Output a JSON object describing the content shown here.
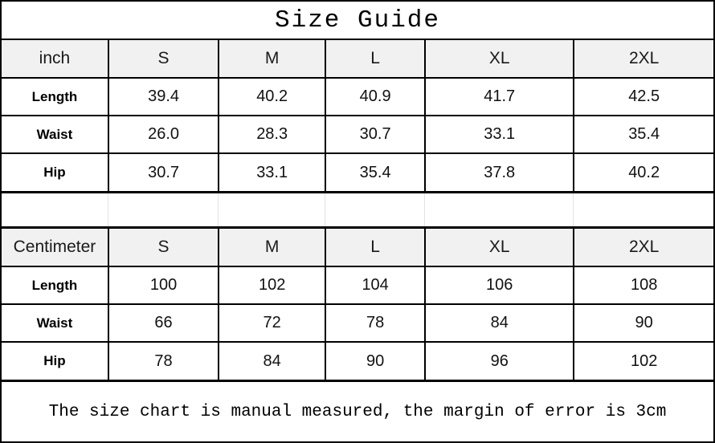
{
  "title": "Size Guide",
  "footer_note": "The size chart is manual measured, the margin of error is 3cm",
  "colors": {
    "header_row_bg": "#f1f1f1",
    "table_border": "#000000",
    "faint_gridline": "#e2e2e2",
    "background": "#ffffff"
  },
  "chart_data": [
    {
      "type": "table",
      "title": "inch size chart",
      "columns": [
        "inch",
        "S",
        "M",
        "L",
        "XL",
        "2XL"
      ],
      "rows": [
        [
          "Length",
          "39.4",
          "40.2",
          "40.9",
          "41.7",
          "42.5"
        ],
        [
          "Waist",
          "26.0",
          "28.3",
          "30.7",
          "33.1",
          "35.4"
        ],
        [
          "Hip",
          "30.7",
          "33.1",
          "35.4",
          "37.8",
          "40.2"
        ]
      ]
    },
    {
      "type": "table",
      "title": "centimeter size chart",
      "columns": [
        "Centimeter",
        "S",
        "M",
        "L",
        "XL",
        "2XL"
      ],
      "rows": [
        [
          "Length",
          "100",
          "102",
          "104",
          "106",
          "108"
        ],
        [
          "Waist",
          "66",
          "72",
          "78",
          "84",
          "90"
        ],
        [
          "Hip",
          "78",
          "84",
          "90",
          "96",
          "102"
        ]
      ]
    }
  ]
}
